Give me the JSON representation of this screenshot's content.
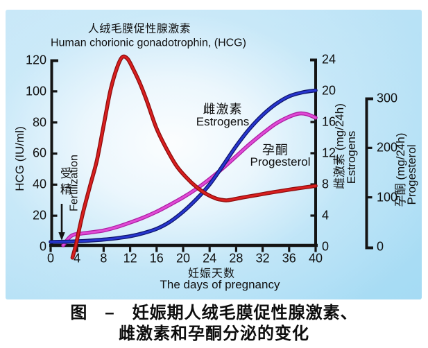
{
  "titles": {
    "zh": "人绒毛膜促性腺激素",
    "en": "Human chorionic gonadotrophin,  (HCG)"
  },
  "caption": {
    "line1": "图　–　妊娠期人绒毛膜促性腺激素、",
    "line2": "雌激素和孕酮分泌的变化"
  },
  "colors": {
    "axis": "#141414",
    "hcg_curve": "#d81f1f",
    "estrogens_curve": "#2736cf",
    "progesterone_curve": "#e04ad6",
    "panel_top": "#c6e7f8",
    "panel_bottom": "#a5dbf4"
  },
  "curve_labels": {
    "estrogens_zh": "雌激素",
    "estrogens_en": "Estrogens",
    "progesterone_zh": "孕酮",
    "progesterone_en": "Progesterol"
  },
  "chart_data": {
    "type": "line",
    "x_axis": {
      "label_zh": "妊娠天数",
      "label_en": "The days of pregnancy",
      "range": [
        0,
        40
      ],
      "ticks": [
        0,
        4,
        8,
        12,
        16,
        20,
        24,
        28,
        32,
        36,
        40
      ]
    },
    "y_axes": [
      {
        "id": "hcg",
        "side": "left",
        "label": "HCG (IU/ml)",
        "range": [
          0,
          120
        ],
        "ticks": [
          0,
          20,
          40,
          60,
          80,
          100,
          120
        ]
      },
      {
        "id": "estrogens",
        "side": "right-inner",
        "label_zh": "雌激素 (mg/24h)",
        "label_en": "Estrogens",
        "range": [
          0,
          24
        ],
        "ticks": [
          0,
          4,
          8,
          12,
          16,
          20,
          24
        ]
      },
      {
        "id": "progesterone",
        "side": "right-outer",
        "label_zh": "孕酮 (mg/24h)",
        "label_en": "Progesterol",
        "range": [
          0,
          300
        ],
        "ticks": [
          0,
          100,
          200,
          300
        ]
      }
    ],
    "annotations": {
      "fertilization_zh": "受精",
      "fertilization_en": "Fertilization",
      "fertilization_day": 2
    },
    "series": [
      {
        "id": "progesterone",
        "name": "Progesterol",
        "axis": "progesterone",
        "color": "#e04ad6",
        "edge": "#ad1fa3",
        "points": [
          [
            1.9,
            3
          ],
          [
            2.4,
            12
          ],
          [
            3,
            21
          ],
          [
            3.6,
            25
          ],
          [
            4.5,
            26.5
          ],
          [
            6,
            29
          ],
          [
            8,
            33
          ],
          [
            10,
            40
          ],
          [
            12,
            49
          ],
          [
            14,
            59
          ],
          [
            16,
            71
          ],
          [
            18,
            85
          ],
          [
            20,
            100
          ],
          [
            22,
            117
          ],
          [
            24,
            137
          ],
          [
            26,
            159
          ],
          [
            28,
            183
          ],
          [
            30,
            207
          ],
          [
            32,
            229
          ],
          [
            34,
            249
          ],
          [
            36,
            263
          ],
          [
            37.5,
            269.5
          ],
          [
            38.7,
            268
          ],
          [
            40,
            261
          ]
        ]
      },
      {
        "id": "estrogens",
        "name": "Estrogens",
        "axis": "estrogens",
        "color": "#2736cf",
        "edge": "#10166e",
        "points": [
          [
            0,
            0.62
          ],
          [
            2,
            0.65
          ],
          [
            4,
            0.7
          ],
          [
            6,
            0.8
          ],
          [
            8,
            0.92
          ],
          [
            10,
            1.1
          ],
          [
            12,
            1.35
          ],
          [
            14,
            1.75
          ],
          [
            16,
            2.3
          ],
          [
            18,
            3.2
          ],
          [
            20,
            4.5
          ],
          [
            22,
            6.1
          ],
          [
            24,
            8
          ],
          [
            26,
            10.4
          ],
          [
            28,
            12.9
          ],
          [
            30,
            15.1
          ],
          [
            32,
            16.9
          ],
          [
            34,
            18.3
          ],
          [
            36,
            19.3
          ],
          [
            38,
            19.8
          ],
          [
            40,
            20.05
          ]
        ]
      },
      {
        "id": "hcg",
        "name": "HCG",
        "axis": "hcg",
        "color": "#d81f1f",
        "edge": "#8f0d0d",
        "points": [
          [
            3.3,
            -7
          ],
          [
            3.8,
            1
          ],
          [
            4.3,
            11
          ],
          [
            5,
            24
          ],
          [
            6,
            40
          ],
          [
            7,
            56
          ],
          [
            8,
            78
          ],
          [
            9,
            100
          ],
          [
            10,
            115
          ],
          [
            10.8,
            122
          ],
          [
            11.6,
            121
          ],
          [
            12.5,
            114
          ],
          [
            13.5,
            105
          ],
          [
            14.5,
            94
          ],
          [
            16,
            76
          ],
          [
            17.5,
            63
          ],
          [
            19,
            52
          ],
          [
            20.5,
            44.5
          ],
          [
            22,
            38.5
          ],
          [
            23.5,
            34
          ],
          [
            25,
            31
          ],
          [
            26,
            30.1
          ],
          [
            26.6,
            29.9
          ],
          [
            27.4,
            30.4
          ],
          [
            29,
            31.7
          ],
          [
            31,
            33.2
          ],
          [
            33,
            34.7
          ],
          [
            35,
            36.1
          ],
          [
            37,
            37.4
          ],
          [
            38.5,
            38.3
          ],
          [
            40,
            39.2
          ]
        ]
      }
    ]
  }
}
